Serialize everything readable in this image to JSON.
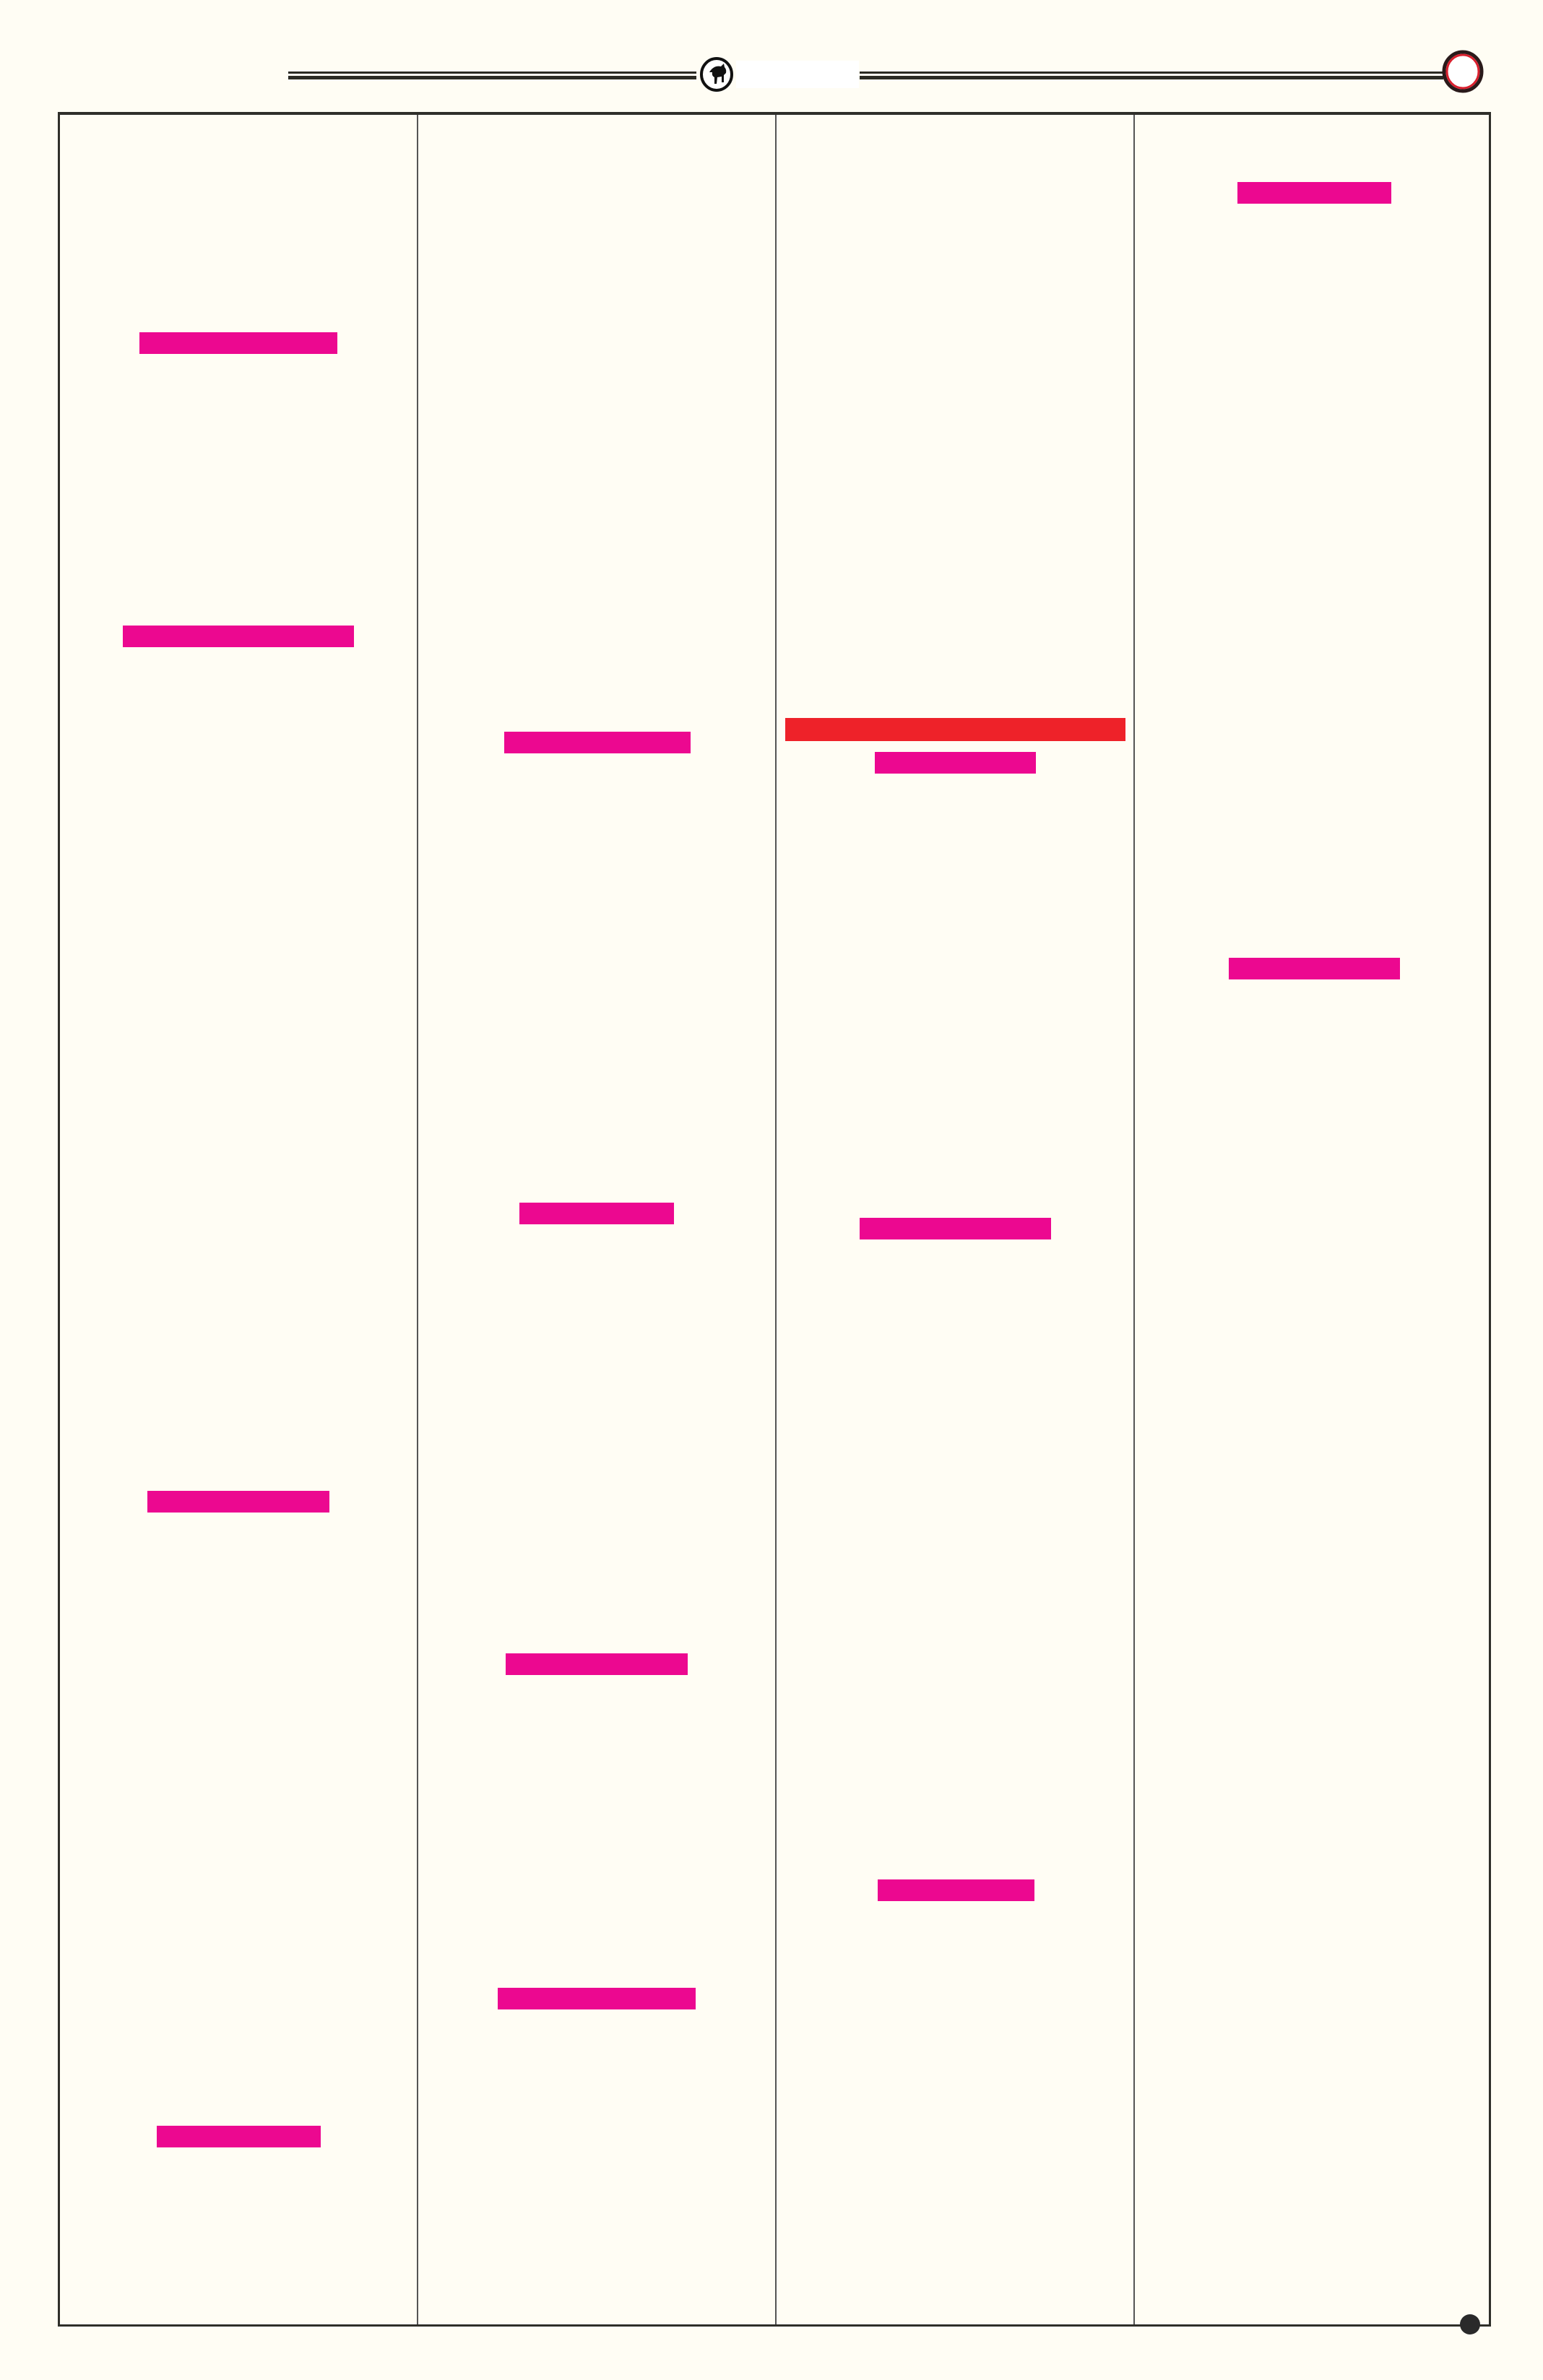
{
  "colors": {
    "background": "#fffdf4",
    "rule": "#2a2a24",
    "redaction_magenta": "#ec0890",
    "redaction_red": "#ee2229",
    "badge_ring": "#d9202e"
  },
  "header": {
    "logo_icon": "bull-emblem-icon",
    "page_marker_icon": "circle-badge-icon"
  },
  "footer": {
    "marker_icon": "dot-icon"
  },
  "columns": 4
}
